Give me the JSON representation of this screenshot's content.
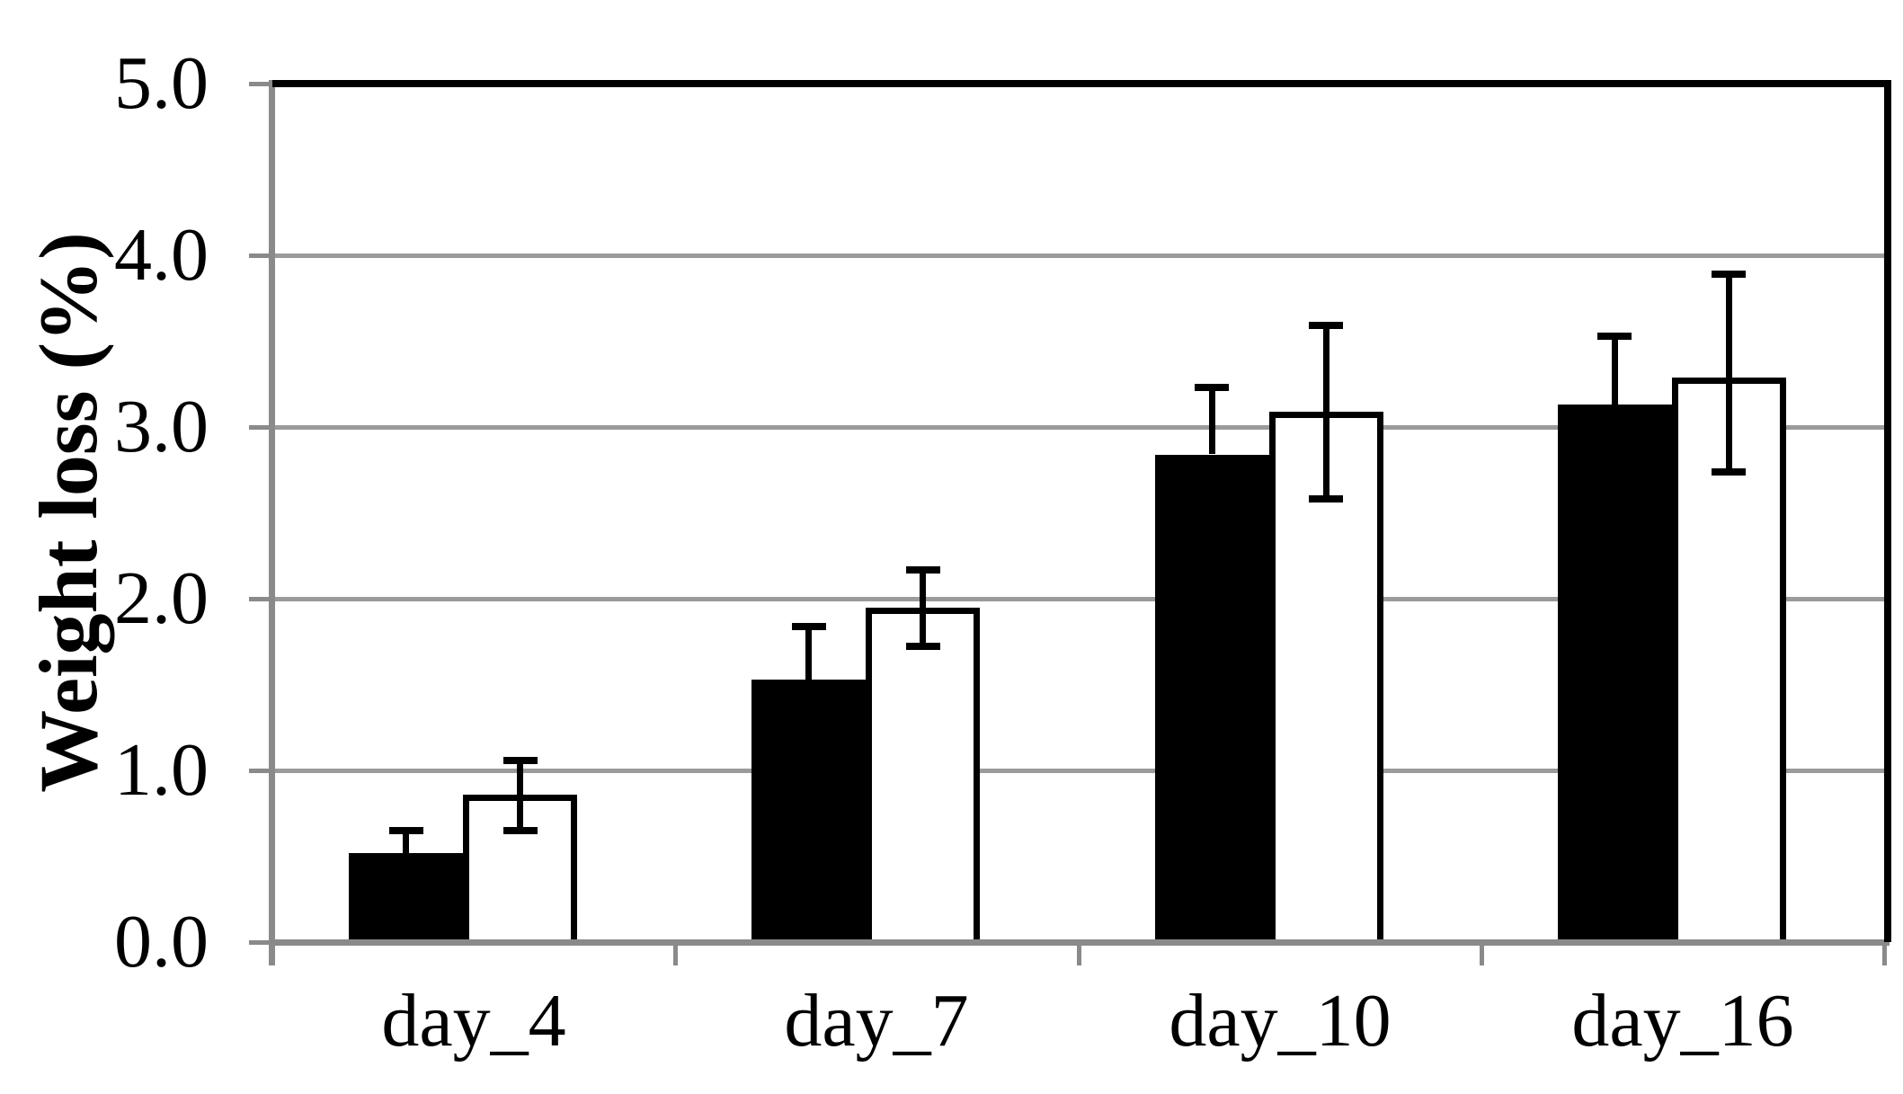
{
  "chart_data": {
    "type": "bar",
    "title": "",
    "xlabel": "",
    "ylabel": "Weight loss (%)",
    "categories": [
      "day_4",
      "day_7",
      "day_10",
      "day_16"
    ],
    "series": [
      {
        "name": "black_bars",
        "fill": "black",
        "values": [
          0.52,
          1.53,
          2.84,
          3.13
        ],
        "err_up": [
          0.13,
          0.31,
          0.39,
          0.4
        ],
        "err_down": [
          null,
          null,
          null,
          null
        ]
      },
      {
        "name": "white_bars",
        "fill": "white",
        "values": [
          0.86,
          1.95,
          3.09,
          3.29
        ],
        "err_up": [
          0.2,
          0.22,
          0.5,
          0.6
        ],
        "err_down": [
          0.21,
          0.23,
          0.51,
          0.55
        ]
      }
    ],
    "ylim": [
      0,
      5
    ],
    "ytick_step": 1,
    "ytick_labels": [
      "0.0",
      "1.0",
      "2.0",
      "3.0",
      "4.0",
      "5.0"
    ],
    "grid": true,
    "legend": false
  },
  "colors": {
    "background": "#ffffff",
    "text": "#000000",
    "gridline": "#9b9b9b",
    "axis": "#8a8a8a",
    "plot_border": "#000000",
    "bar_fill_black": "#000000",
    "bar_fill_white": "#ffffff",
    "bar_border": "#000000",
    "error_bar": "#000000"
  }
}
